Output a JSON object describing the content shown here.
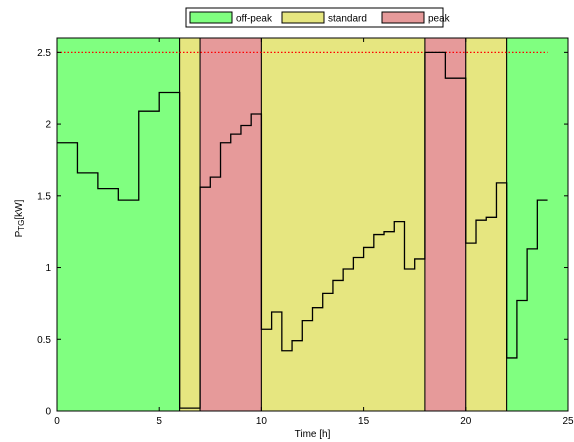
{
  "chart_data": {
    "type": "line",
    "xlabel": "Time [h]",
    "ylabel": {
      "main": "P",
      "sub": "TG",
      "unit": "[kW]"
    },
    "xlim": [
      0,
      25
    ],
    "ylim": [
      0,
      2.6
    ],
    "xticks": [
      0,
      5,
      10,
      15,
      20,
      25
    ],
    "yticks": [
      0,
      0.5,
      1,
      1.5,
      2,
      2.5
    ],
    "xtick_labels": [
      "0",
      "5",
      "10",
      "15",
      "20",
      "25"
    ],
    "ytick_labels": [
      "0",
      "0.5",
      "1",
      "1.5",
      "2",
      "2.5"
    ],
    "grid": false,
    "legend": {
      "placement": "top-center",
      "entries": [
        {
          "label": "off-peak",
          "color": "#80ff80"
        },
        {
          "label": "standard",
          "color": "#e6e680"
        },
        {
          "label": "peak",
          "color": "#e69a9a"
        }
      ]
    },
    "tariff_bands": [
      {
        "start": 0,
        "end": 6,
        "period": "off-peak"
      },
      {
        "start": 6,
        "end": 7,
        "period": "standard"
      },
      {
        "start": 7,
        "end": 10,
        "period": "peak"
      },
      {
        "start": 10,
        "end": 18,
        "period": "standard"
      },
      {
        "start": 18,
        "end": 20,
        "period": "peak"
      },
      {
        "start": 20,
        "end": 22,
        "period": "standard"
      },
      {
        "start": 22,
        "end": 25,
        "period": "off-peak"
      }
    ],
    "limit_line": {
      "y": 2.5,
      "x_start": 0,
      "x_end": 24,
      "color": "#ff0000",
      "style": "dotted"
    },
    "series": [
      {
        "step": "post",
        "color": "#000000",
        "x": [
          0,
          1,
          2,
          3,
          4,
          5,
          6,
          6.25,
          7,
          7.25,
          7.5,
          7.75,
          8,
          8.25,
          8.5,
          8.75,
          9,
          9.25,
          9.5,
          9.75,
          10,
          10.25,
          10.5,
          10.75,
          11,
          11.25,
          11.5,
          11.75,
          12,
          12.25,
          12.5,
          12.75,
          13,
          13.25,
          13.5,
          13.75,
          14,
          14.25,
          14.5,
          14.75,
          15,
          15.25,
          15.5,
          15.75,
          16,
          16.25,
          16.5,
          16.75,
          17,
          17.25,
          17.5,
          17.75,
          18,
          18.25,
          18.5,
          18.75,
          19,
          19.25,
          19.5,
          19.75,
          20,
          20.25,
          20.5,
          20.75,
          21,
          21.25,
          21.5,
          21.75,
          22,
          22.25,
          22.5,
          22.75,
          23,
          23.25,
          23.5,
          23.75,
          24
        ],
        "y": [
          1.87,
          1.66,
          1.55,
          1.47,
          2.09,
          2.22,
          0.02,
          0.02,
          1.56,
          1.56,
          1.63,
          1.63,
          1.87,
          1.87,
          1.93,
          1.93,
          1.99,
          1.99,
          2.07,
          2.07,
          0.57,
          0.57,
          0.69,
          0.69,
          0.42,
          0.42,
          0.49,
          0.49,
          0.63,
          0.63,
          0.72,
          0.72,
          0.82,
          0.82,
          0.91,
          0.91,
          0.99,
          0.99,
          1.07,
          1.07,
          1.14,
          1.14,
          1.23,
          1.23,
          1.25,
          1.25,
          1.32,
          1.32,
          0.99,
          0.99,
          1.06,
          1.06,
          2.5,
          2.5,
          2.5,
          2.5,
          2.32,
          2.32,
          2.32,
          2.32,
          1.17,
          1.17,
          1.33,
          1.33,
          1.35,
          1.35,
          1.59,
          1.59,
          0.37,
          0.37,
          0.77,
          0.77,
          1.13,
          1.13,
          1.47,
          1.47,
          1.47
        ]
      }
    ]
  }
}
